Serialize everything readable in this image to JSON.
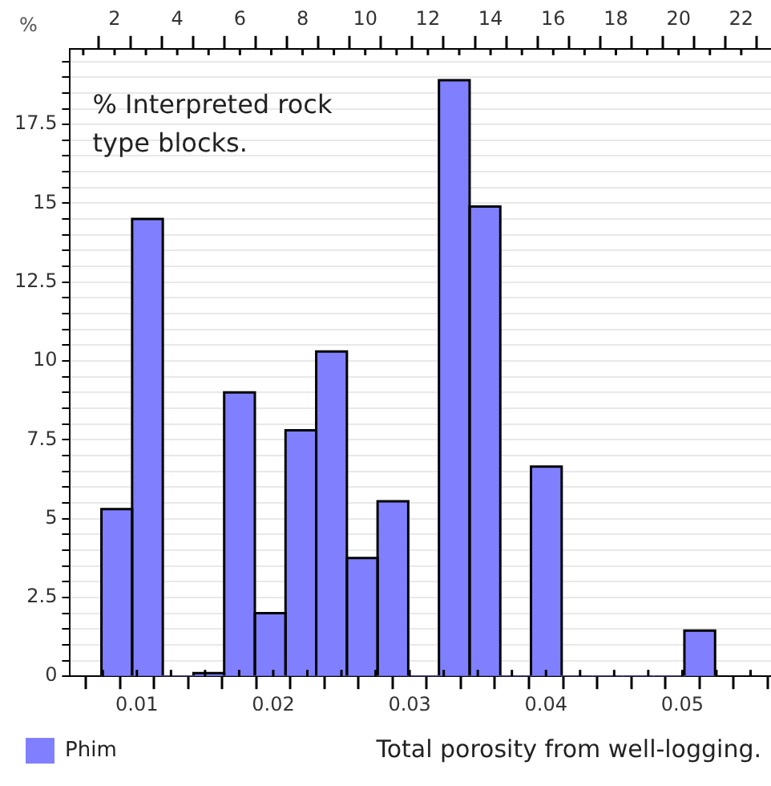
{
  "chart_data": {
    "type": "histogram",
    "ylabel": "%",
    "xlabel": "Total porosity from well-logging.",
    "annotations": [
      "% Interpreted rock type blocks."
    ],
    "bins": [
      0.0074,
      0.00965,
      0.0119,
      0.01415,
      0.0164,
      0.01865,
      0.0209,
      0.02315,
      0.0254,
      0.02765,
      0.0299,
      0.03215,
      0.0344,
      0.03665,
      0.0389,
      0.04115,
      0.0434,
      0.04565,
      0.0479,
      0.05015,
      0.0524
    ],
    "series": [
      {
        "name": "Phim",
        "color": "#8080ff",
        "values": [
          5.3,
          14.5,
          0,
          0.1,
          9.0,
          2.0,
          7.8,
          10.3,
          3.75,
          5.55,
          0,
          18.9,
          14.9,
          0,
          6.65,
          0,
          0,
          0,
          0,
          1.45
        ]
      }
    ],
    "xlim": [
      0.0051,
      0.0565
    ],
    "xticks": [
      {
        "value": 0.0075,
        "label": null
      },
      0.01,
      {
        "value": 0.0125,
        "label": null
      },
      {
        "value": 0.015,
        "label": null
      },
      {
        "value": 0.0175,
        "label": null
      },
      0.02,
      {
        "value": 0.0225,
        "label": null
      },
      {
        "value": 0.025,
        "label": null
      },
      {
        "value": 0.0275,
        "label": null
      },
      0.03,
      {
        "value": 0.0325,
        "label": null
      },
      {
        "value": 0.035,
        "label": null
      },
      {
        "value": 0.0375,
        "label": null
      },
      0.04,
      {
        "value": 0.0425,
        "label": null
      },
      {
        "value": 0.045,
        "label": null
      },
      {
        "value": 0.0475,
        "label": null
      },
      0.05,
      {
        "value": 0.0525,
        "label": null
      },
      {
        "value": 0.055,
        "label": null
      }
    ],
    "x2lim": [
      0.58,
      22.95
    ],
    "x2ticks": [
      {
        "value": 1,
        "label": null
      },
      2,
      {
        "value": 3,
        "label": null
      },
      4,
      {
        "value": 5,
        "label": null
      },
      6,
      {
        "value": 7,
        "label": null
      },
      8,
      {
        "value": 9,
        "label": null
      },
      10,
      {
        "value": 11,
        "label": null
      },
      12,
      {
        "value": 13,
        "label": null
      },
      14,
      {
        "value": 15,
        "label": null
      },
      16,
      {
        "value": 17,
        "label": null
      },
      18,
      {
        "value": 19,
        "label": null
      },
      20,
      {
        "value": 21,
        "label": null
      },
      22
    ],
    "ylim": [
      0,
      19.9
    ],
    "yticks": [
      0,
      {
        "value": 0.5,
        "label": null
      },
      {
        "value": 1,
        "label": null
      },
      {
        "value": 1.5,
        "label": null
      },
      {
        "value": 2,
        "label": null
      },
      2.5,
      {
        "value": 3,
        "label": null
      },
      {
        "value": 3.5,
        "label": null
      },
      {
        "value": 4,
        "label": null
      },
      {
        "value": 4.5,
        "label": null
      },
      5,
      {
        "value": 5.5,
        "label": null
      },
      {
        "value": 6,
        "label": null
      },
      {
        "value": 6.5,
        "label": null
      },
      {
        "value": 7,
        "label": null
      },
      7.5,
      {
        "value": 8,
        "label": null
      },
      {
        "value": 8.5,
        "label": null
      },
      {
        "value": 9,
        "label": null
      },
      {
        "value": 9.5,
        "label": null
      },
      10,
      {
        "value": 10.5,
        "label": null
      },
      {
        "value": 11,
        "label": null
      },
      {
        "value": 11.5,
        "label": null
      },
      {
        "value": 12,
        "label": null
      },
      12.5,
      {
        "value": 13,
        "label": null
      },
      {
        "value": 13.5,
        "label": null
      },
      {
        "value": 14,
        "label": null
      },
      {
        "value": 14.5,
        "label": null
      },
      15,
      {
        "value": 15.5,
        "label": null
      },
      {
        "value": 16,
        "label": null
      },
      {
        "value": 16.5,
        "label": null
      },
      {
        "value": 17,
        "label": null
      },
      17.5,
      {
        "value": 18,
        "label": null
      },
      {
        "value": 18.5,
        "label": null
      },
      {
        "value": 19,
        "label": null
      },
      {
        "value": 19.5,
        "label": null
      }
    ],
    "grid": "y",
    "legend": "bottom left"
  }
}
